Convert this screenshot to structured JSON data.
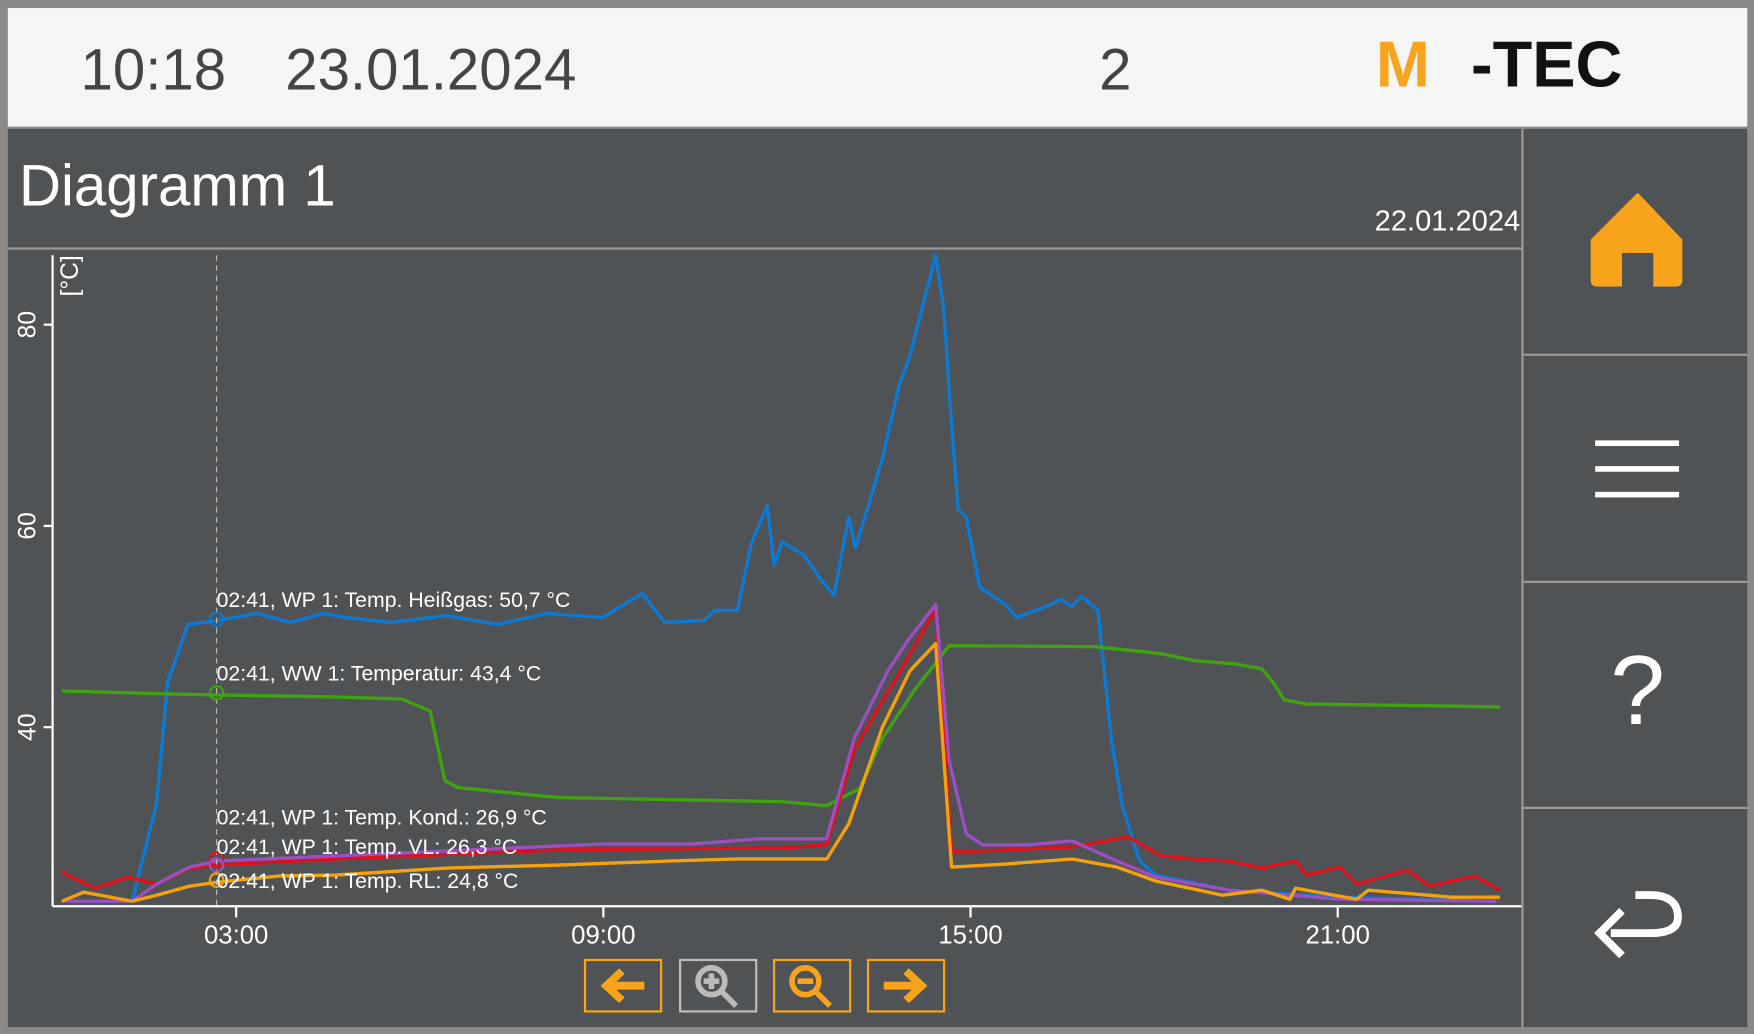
{
  "header": {
    "time": "10:18",
    "date": "23.01.2024",
    "number": "2",
    "logo": [
      "M",
      "-TEC"
    ]
  },
  "nav": {
    "help": "?"
  },
  "chart_data": {
    "type": "line",
    "title": "Diagramm 1",
    "date": "22.01.2024",
    "ylabel": "[°C]",
    "xlim": [
      0,
      24
    ],
    "xticks": [
      {
        "value": 3,
        "label": "03:00"
      },
      {
        "value": 9,
        "label": "09:00"
      },
      {
        "value": 15,
        "label": "15:00"
      },
      {
        "value": 21,
        "label": "21:00"
      }
    ],
    "ylim": [
      22.2,
      86.9
    ],
    "yticks": [
      40,
      60,
      80
    ],
    "cursor_x": 2.68,
    "series": [
      {
        "name": "WP 1: Temp. Heißgas",
        "color": "#0a7ad6",
        "x": [
          0.15,
          1.3,
          1.7,
          1.88,
          2.21,
          2.7,
          3.34,
          3.89,
          4.43,
          4.8,
          5.53,
          6.44,
          7.26,
          8.08,
          8.99,
          9.64,
          10.0,
          10.64,
          10.82,
          11.19,
          11.42,
          11.68,
          11.79,
          11.92,
          12.28,
          12.55,
          12.77,
          13.01,
          13.12,
          13.56,
          13.83,
          14.01,
          14.43,
          14.56,
          14.69,
          14.8,
          14.93,
          15.15,
          15.57,
          15.75,
          16.2,
          16.48,
          16.66,
          16.81,
          17.08,
          17.3,
          17.48,
          17.76,
          18.03,
          19.22,
          21.04,
          23.59
        ],
        "values": [
          22.7,
          22.7,
          32.4,
          44.4,
          50.2,
          50.6,
          51.3,
          50.4,
          51.3,
          50.9,
          50.4,
          51.1,
          50.2,
          51.3,
          50.9,
          53.3,
          50.4,
          50.6,
          51.6,
          51.6,
          58.3,
          62.0,
          56.1,
          58.4,
          57.1,
          54.7,
          53.1,
          60.9,
          57.8,
          66.7,
          73.9,
          76.9,
          86.9,
          81.7,
          70.0,
          61.6,
          60.9,
          53.9,
          52.2,
          50.9,
          51.9,
          52.7,
          52.0,
          53.0,
          51.6,
          38.9,
          32.2,
          26.7,
          25.3,
          23.8,
          23.1,
          22.7
        ]
      },
      {
        "name": "WW 1: Temperatur",
        "color": "#3fa30f",
        "x": [
          0.15,
          1.88,
          2.7,
          4.62,
          5.71,
          6.17,
          6.41,
          6.62,
          8.27,
          10.09,
          11.92,
          12.65,
          13.19,
          13.56,
          14.11,
          14.65,
          17.03,
          18.12,
          18.67,
          19.31,
          19.76,
          19.95,
          20.13,
          20.49,
          22.86,
          23.65
        ],
        "values": [
          43.6,
          43.3,
          43.2,
          43.0,
          42.8,
          41.6,
          34.7,
          34.0,
          33.0,
          32.8,
          32.6,
          32.2,
          33.9,
          38.9,
          43.9,
          48.1,
          48.0,
          47.3,
          46.6,
          46.3,
          45.8,
          44.4,
          42.7,
          42.3,
          42.1,
          42.0
        ]
      },
      {
        "name": "WP 1: Temp. Kond.",
        "color": "#e0101a",
        "x": [
          0.15,
          0.69,
          1.24,
          1.7,
          2.24,
          2.7,
          4.62,
          8.27,
          11.92,
          12.65,
          13.1,
          13.74,
          14.43,
          14.69,
          15.57,
          16.66,
          17.57,
          18.12,
          18.67,
          19.22,
          19.76,
          20.31,
          20.49,
          21.04,
          21.31,
          22.14,
          22.5,
          23.23,
          23.65
        ],
        "values": [
          25.6,
          24.0,
          25.1,
          24.4,
          26.0,
          26.3,
          26.9,
          27.8,
          28.0,
          28.3,
          37.8,
          44.4,
          51.7,
          27.6,
          27.8,
          28.1,
          29.1,
          27.2,
          26.9,
          26.7,
          26.0,
          26.7,
          25.3,
          26.1,
          24.4,
          25.8,
          24.2,
          25.2,
          23.8
        ]
      },
      {
        "name": "WP 1: Temp. VL",
        "color": "#9b4fc0",
        "x": [
          0.15,
          1.3,
          1.7,
          2.24,
          2.7,
          4.62,
          8.27,
          8.99,
          10.46,
          11.55,
          12.65,
          13.1,
          13.65,
          14.01,
          14.43,
          14.65,
          14.93,
          15.2,
          15.93,
          16.66,
          17.39,
          18.03,
          19.22,
          21.04,
          23.59
        ],
        "values": [
          22.7,
          22.7,
          24.4,
          26.1,
          26.7,
          27.2,
          28.2,
          28.4,
          28.4,
          28.9,
          28.9,
          38.9,
          45.6,
          48.9,
          52.2,
          36.7,
          29.4,
          28.3,
          28.3,
          28.7,
          26.7,
          25.1,
          23.8,
          22.9,
          22.7
        ]
      },
      {
        "name": "WP 1: Temp. RL",
        "color": "#f5a20a",
        "x": [
          0.15,
          0.51,
          1.3,
          1.7,
          2.24,
          2.7,
          3.7,
          4.62,
          6.44,
          8.27,
          10.09,
          11.19,
          12.65,
          13.01,
          13.56,
          14.01,
          14.43,
          14.69,
          15.57,
          16.66,
          17.39,
          18.03,
          19.12,
          19.76,
          20.22,
          20.31,
          21.31,
          21.5,
          22.86,
          23.65
        ],
        "values": [
          22.7,
          23.6,
          22.7,
          23.3,
          24.2,
          24.6,
          25.2,
          25.3,
          26.0,
          26.3,
          26.7,
          26.9,
          26.9,
          30.4,
          40.0,
          45.6,
          48.3,
          26.1,
          26.4,
          26.9,
          26.1,
          24.7,
          23.3,
          23.8,
          22.9,
          24.0,
          22.9,
          23.8,
          23.1,
          23.1
        ]
      }
    ],
    "annotations": [
      {
        "text": "02:41, WP 1: Temp. Heißgas: 50,7 °C",
        "series": 0,
        "x": 2.68,
        "y": 50.7
      },
      {
        "text": "02:41, WW 1: Temperatur: 43,4 °C",
        "series": 1,
        "x": 2.68,
        "y": 43.4
      },
      {
        "text": "02:41, WP 1: Temp. Kond.: 26,9 °C",
        "series": 2,
        "x": 2.68,
        "y": 26.9
      },
      {
        "text": "02:41, WP 1: Temp. VL: 26,3 °C",
        "series": 3,
        "x": 2.68,
        "y": 26.3
      },
      {
        "text": "02:41, WP 1: Temp. RL: 24,8 °C",
        "series": 4,
        "x": 2.68,
        "y": 24.8
      }
    ]
  }
}
